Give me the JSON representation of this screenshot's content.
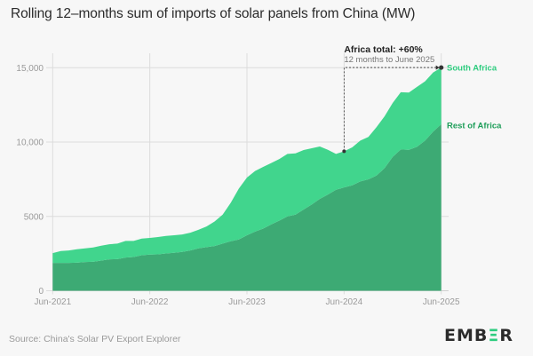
{
  "chart_data": {
    "type": "area",
    "stacked": true,
    "title": "Rolling 12–months sum of imports of solar panels from China (MW)",
    "xlabel": "",
    "ylabel": "",
    "ylim": [
      0,
      16000
    ],
    "yticks": [
      0,
      5000,
      10000,
      15000
    ],
    "ytick_labels": [
      "0",
      "5000",
      "10,000",
      "15,000"
    ],
    "xtick_labels": [
      "Jun-2021",
      "Jun-2022",
      "Jun-2023",
      "Jun-2024",
      "Jun-2025"
    ],
    "x_start": "Jun-2021",
    "x_end": "Jun-2025",
    "x_frequency": "monthly",
    "grid": true,
    "series": [
      {
        "name": "Rest of Africa",
        "color": "#3daa74",
        "label_color": "#1f9e5a",
        "values": [
          1870,
          1870,
          1870,
          1890,
          1930,
          1950,
          2030,
          2110,
          2130,
          2230,
          2270,
          2390,
          2430,
          2450,
          2510,
          2550,
          2610,
          2710,
          2850,
          2930,
          3010,
          3170,
          3330,
          3450,
          3730,
          3980,
          4180,
          4460,
          4720,
          5000,
          5120,
          5460,
          5800,
          6180,
          6470,
          6790,
          6950,
          7090,
          7350,
          7490,
          7750,
          8250,
          9000,
          9500,
          9480,
          9680,
          10100,
          10700,
          11200
        ]
      },
      {
        "name": "South Africa",
        "color": "#41d58d",
        "label_color": "#2ecc7f",
        "values": [
          660,
          800,
          840,
          900,
          920,
          960,
          1000,
          1020,
          1040,
          1120,
          1080,
          1120,
          1120,
          1160,
          1180,
          1180,
          1170,
          1190,
          1250,
          1390,
          1650,
          1950,
          2590,
          3420,
          3880,
          4070,
          4150,
          4130,
          4140,
          4200,
          4120,
          4000,
          3780,
          3520,
          3010,
          2410,
          2430,
          2550,
          2750,
          2850,
          3250,
          3480,
          3630,
          3850,
          3850,
          4030,
          3980,
          3980,
          3810
        ]
      }
    ],
    "annotation": {
      "title": "Africa total: +60%",
      "subtitle": "12 months to June 2025",
      "from": "Jun-2024",
      "to": "Jun-2025"
    }
  },
  "footer": {
    "source": "Source: China's Solar PV Export Explorer",
    "logo_pre": "EMB",
    "logo_e": "Ξ",
    "logo_post": "R"
  }
}
